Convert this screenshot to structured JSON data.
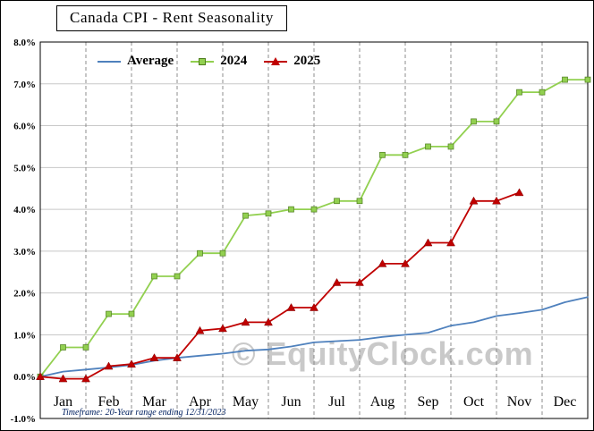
{
  "chart_data": {
    "type": "line",
    "title": "Canada CPI - Rent Seasonality",
    "watermark": "© EquityClock.com",
    "footnote": "Timeframe: 20-Year range ending 12/31/2023",
    "categories": [
      "Jan",
      "Feb",
      "Mar",
      "Apr",
      "May",
      "Jun",
      "Jul",
      "Aug",
      "Sep",
      "Oct",
      "Nov",
      "Dec"
    ],
    "x_unit": "months (0 = Jan 1, 0.5 = mid-Jan, 12 = Dec 31)",
    "ylim": [
      -1.0,
      8.0
    ],
    "y_ticks": [
      8.0,
      7.0,
      6.0,
      5.0,
      4.0,
      3.0,
      2.0,
      1.0,
      0.0,
      -1.0
    ],
    "y_tick_labels": [
      "8.0%",
      "7.0%",
      "6.0%",
      "5.0%",
      "4.0%",
      "3.0%",
      "2.0%",
      "1.0%",
      "0.0%",
      "-1.0%"
    ],
    "grid": true,
    "legend_position": "top-left-inside",
    "series": [
      {
        "name": "Average",
        "color": "#4f81bd",
        "marker": "none",
        "x": [
          0,
          0.5,
          1,
          1.5,
          2,
          2.5,
          3,
          3.5,
          4,
          4.5,
          5,
          5.5,
          6,
          6.5,
          7,
          7.5,
          8,
          8.5,
          9,
          9.5,
          10,
          10.5,
          11,
          11.5,
          12
        ],
        "values": [
          0.0,
          0.12,
          0.17,
          0.22,
          0.28,
          0.38,
          0.45,
          0.5,
          0.55,
          0.62,
          0.65,
          0.72,
          0.82,
          0.85,
          0.88,
          0.95,
          1.0,
          1.05,
          1.22,
          1.3,
          1.45,
          1.52,
          1.6,
          1.78,
          1.9
        ]
      },
      {
        "name": "2024",
        "color": "#92d050",
        "marker": "square",
        "marker_stroke": "#4e7d1e",
        "x": [
          0,
          0.5,
          1,
          1.5,
          2,
          2.5,
          3,
          3.5,
          4,
          4.5,
          5,
          5.5,
          6,
          6.5,
          7,
          7.5,
          8,
          8.5,
          9,
          9.5,
          10,
          10.5,
          11,
          11.5,
          12
        ],
        "values": [
          0.0,
          0.7,
          0.7,
          1.5,
          1.5,
          2.4,
          2.4,
          2.95,
          2.95,
          3.85,
          3.9,
          4.0,
          4.0,
          4.2,
          4.2,
          5.3,
          5.3,
          5.5,
          5.5,
          6.1,
          6.1,
          6.8,
          6.8,
          7.1,
          7.1
        ]
      },
      {
        "name": "2025",
        "color": "#c00000",
        "marker": "triangle",
        "marker_stroke": "#7f0000",
        "x": [
          0,
          0.5,
          1,
          1.5,
          2,
          2.5,
          3,
          3.5,
          4,
          4.5,
          5,
          5.5,
          6,
          6.5,
          7,
          7.5,
          8,
          8.5,
          9,
          9.5,
          10,
          10.5
        ],
        "values": [
          0.0,
          -0.05,
          -0.05,
          0.25,
          0.3,
          0.45,
          0.45,
          1.1,
          1.15,
          1.3,
          1.3,
          1.65,
          1.65,
          2.25,
          2.25,
          2.7,
          2.7,
          3.2,
          3.2,
          4.2,
          4.2,
          4.4
        ]
      }
    ]
  }
}
